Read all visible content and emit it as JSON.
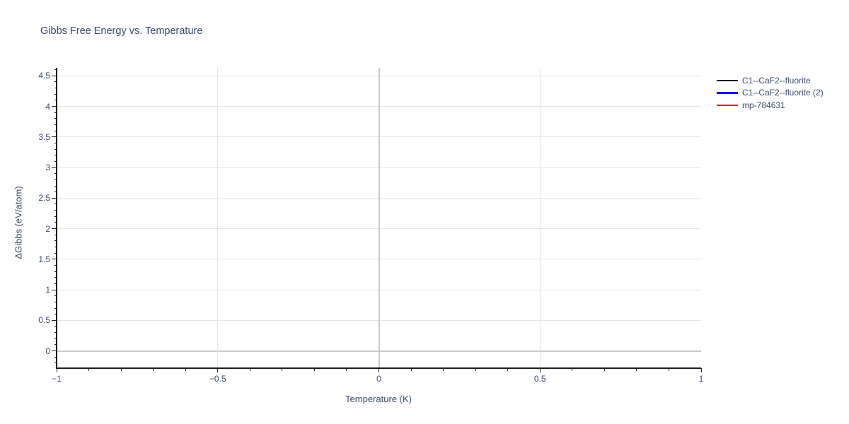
{
  "title": "Gibbs Free Energy vs. Temperature",
  "colors": {
    "background": "#ffffff",
    "text": "#3c4a67",
    "title_text": "#3a4866",
    "grid": "#e5e5e5",
    "zero_grid": "#c9c9c9",
    "axis": "#1c1c1c"
  },
  "chart_data": {
    "type": "line",
    "title": "Gibbs Free Energy vs. Temperature",
    "xlabel": "Temperature (K)",
    "ylabel": "ΔGibbs (eV/atom)",
    "xlim": [
      -1,
      1
    ],
    "ylim": [
      -0.27,
      4.63
    ],
    "x_major_ticks": [
      -1,
      -0.5,
      0,
      0.5,
      1
    ],
    "x_tick_labels": [
      "−1",
      "−0.5",
      "0",
      "0.5",
      "1"
    ],
    "x_gridline_values": [
      -0.5,
      0,
      0.5
    ],
    "y_major_ticks": [
      0,
      0.5,
      1,
      1.5,
      2,
      2.5,
      3,
      3.5,
      4,
      4.5
    ],
    "y_tick_labels": [
      "0",
      "0.5",
      "1",
      "1.5",
      "2",
      "2.5",
      "3",
      "3.5",
      "4",
      "4.5"
    ],
    "minor_tick_step": 0.1,
    "grid": true,
    "zero_lines": {
      "x": 0,
      "y": 0
    },
    "legend_position": "top-right-outside",
    "series": [
      {
        "name": "C1--CaF2--fluorite",
        "color": "#000000",
        "x": [],
        "y": []
      },
      {
        "name": "C1--CaF2--fluorite (2)",
        "color": "#0000ff",
        "x": [],
        "y": []
      },
      {
        "name": "mp-784631",
        "color": "#ff0000",
        "x": [],
        "y": []
      }
    ]
  }
}
